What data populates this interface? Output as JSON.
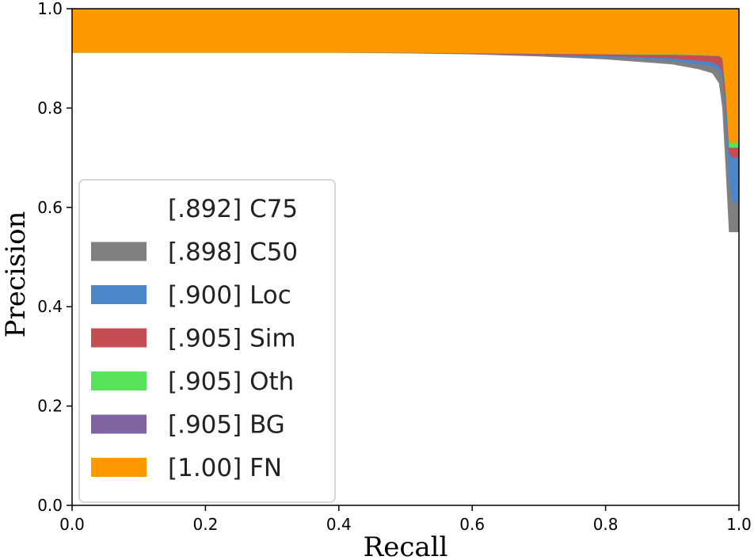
{
  "chart_data": {
    "type": "area",
    "title": "",
    "xlabel": "Recall",
    "ylabel": "Precision",
    "xlim": [
      0.0,
      1.0
    ],
    "ylim": [
      0.0,
      1.0
    ],
    "xticks": [
      "0.0",
      "0.2",
      "0.4",
      "0.6",
      "0.8",
      "1.0"
    ],
    "yticks": [
      "0.0",
      "0.2",
      "0.4",
      "0.6",
      "0.8",
      "1.0"
    ],
    "grid": false,
    "legend_placement": "lower-left",
    "x": [
      0.0,
      0.1,
      0.2,
      0.3,
      0.4,
      0.5,
      0.6,
      0.7,
      0.8,
      0.85,
      0.9,
      0.94,
      0.96,
      0.97,
      0.975,
      0.98,
      0.985,
      0.99,
      0.995,
      1.0
    ],
    "series": [
      {
        "name": "[.892] C75",
        "color": "#ffffff",
        "values": [
          0.911,
          0.911,
          0.911,
          0.911,
          0.911,
          0.91,
          0.908,
          0.904,
          0.898,
          0.893,
          0.888,
          0.878,
          0.87,
          0.85,
          0.8,
          0.68,
          0.55,
          0.55,
          0.55,
          0.55
        ]
      },
      {
        "name": "[.898] C50",
        "color": "#808080",
        "values": [
          0.911,
          0.911,
          0.911,
          0.911,
          0.911,
          0.911,
          0.909,
          0.906,
          0.902,
          0.899,
          0.895,
          0.888,
          0.884,
          0.875,
          0.86,
          0.77,
          0.66,
          0.61,
          0.61,
          0.61
        ]
      },
      {
        "name": "[.900] Loc",
        "color": "#4a86c8",
        "values": [
          0.911,
          0.911,
          0.911,
          0.911,
          0.911,
          0.911,
          0.909,
          0.907,
          0.905,
          0.903,
          0.9,
          0.895,
          0.892,
          0.885,
          0.875,
          0.8,
          0.71,
          0.7,
          0.7,
          0.7
        ]
      },
      {
        "name": "[.905] Sim",
        "color": "#c44e52",
        "values": [
          0.911,
          0.911,
          0.911,
          0.911,
          0.911,
          0.911,
          0.91,
          0.909,
          0.908,
          0.907,
          0.907,
          0.906,
          0.905,
          0.905,
          0.9,
          0.83,
          0.72,
          0.72,
          0.72,
          0.72
        ]
      },
      {
        "name": "[.905] Oth",
        "color": "#59e35a",
        "values": [
          0.911,
          0.911,
          0.911,
          0.911,
          0.911,
          0.911,
          0.91,
          0.909,
          0.908,
          0.908,
          0.908,
          0.907,
          0.906,
          0.906,
          0.902,
          0.84,
          0.73,
          0.73,
          0.73,
          0.73
        ]
      },
      {
        "name": "[.905] BG",
        "color": "#8064a2",
        "values": [
          0.911,
          0.911,
          0.911,
          0.911,
          0.911,
          0.911,
          0.91,
          0.909,
          0.908,
          0.908,
          0.908,
          0.907,
          0.906,
          0.906,
          0.902,
          0.84,
          0.73,
          0.73,
          0.73,
          0.73
        ]
      },
      {
        "name": "[1.00] FN",
        "color": "#ff9900",
        "values": [
          1.0,
          1.0,
          1.0,
          1.0,
          1.0,
          1.0,
          1.0,
          1.0,
          1.0,
          1.0,
          1.0,
          1.0,
          1.0,
          1.0,
          1.0,
          1.0,
          1.0,
          1.0,
          1.0,
          1.0
        ]
      }
    ]
  }
}
